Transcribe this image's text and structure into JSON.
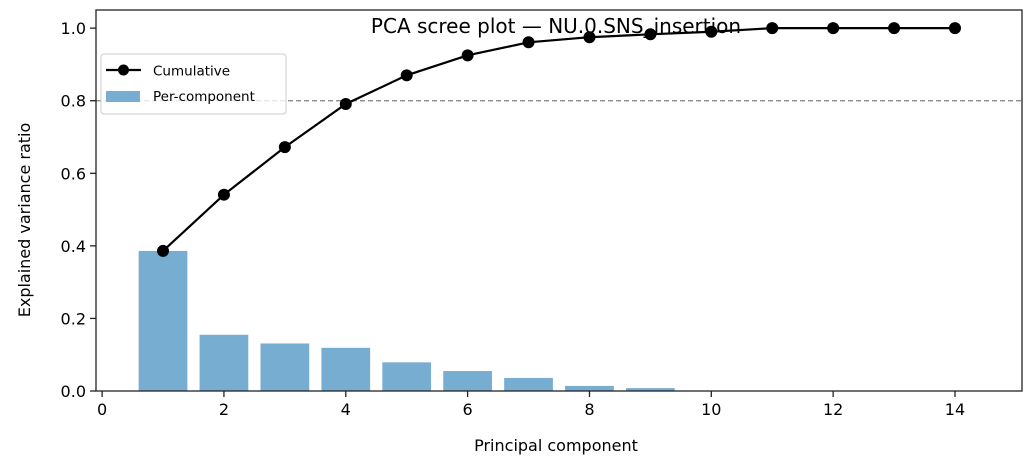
{
  "chart_data": {
    "type": "bar",
    "title": "PCA scree plot — NU.0.SNS_insertion",
    "xlabel": "Principal component",
    "ylabel": "Explained variance ratio",
    "xlim": [
      -0.1,
      15.1
    ],
    "ylim": [
      0.0,
      1.05
    ],
    "xticks": [
      0,
      2,
      4,
      6,
      8,
      10,
      12,
      14
    ],
    "yticks": [
      0.0,
      0.2,
      0.4,
      0.6,
      0.8,
      1.0
    ],
    "xtick_labels": [
      "0",
      "2",
      "4",
      "6",
      "8",
      "10",
      "12",
      "14"
    ],
    "ytick_labels": [
      "0.0",
      "0.2",
      "0.4",
      "0.6",
      "0.8",
      "1.0"
    ],
    "grid": false,
    "legend_position": "upper left",
    "categories": [
      1,
      2,
      3,
      4,
      5,
      6,
      7,
      8,
      9,
      10,
      11,
      12,
      13,
      14
    ],
    "series": [
      {
        "name": "Per-component",
        "type": "bar",
        "color": "#78add2",
        "values": [
          0.386,
          0.155,
          0.131,
          0.119,
          0.079,
          0.055,
          0.036,
          0.014,
          0.008,
          0.0005,
          0.0003,
          0.0001,
          0.0001,
          0.0
        ]
      },
      {
        "name": "Cumulative",
        "type": "line",
        "color": "#000000",
        "marker": "circle",
        "values": [
          0.386,
          0.541,
          0.672,
          0.791,
          0.87,
          0.925,
          0.961,
          0.975,
          0.983,
          0.99,
          1.0,
          1.0,
          1.0,
          1.0
        ]
      }
    ],
    "reference_line": {
      "y": 0.8,
      "style": "dashed",
      "color": "#808080"
    }
  },
  "legend": {
    "items": [
      {
        "label": "Cumulative"
      },
      {
        "label": "Per-component"
      }
    ]
  }
}
